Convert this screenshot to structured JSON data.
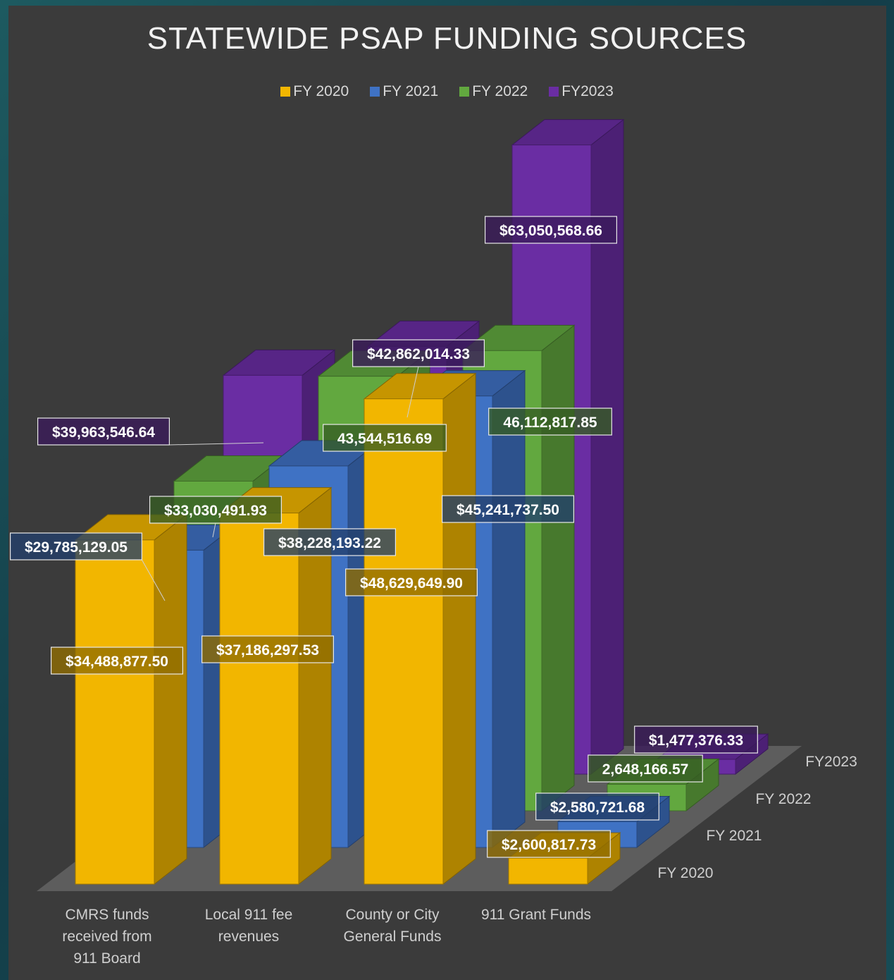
{
  "chart_data": {
    "type": "bar",
    "title": "STATEWIDE PSAP FUNDING SOURCES",
    "categories": [
      "CMRS funds received from 911 Board",
      "Local 911 fee revenues",
      "County or City General Funds",
      "911 Grant Funds"
    ],
    "series": [
      {
        "name": "FY 2020",
        "color": "#f2b600",
        "values": [
          34488877.5,
          37186297.53,
          48629649.9,
          2600817.73
        ],
        "labels": [
          "$34,488,877.50",
          "$37,186,297.53",
          "$48,629,649.90",
          "$2,600,817.73"
        ]
      },
      {
        "name": "FY 2021",
        "color": "#3f72c4",
        "values": [
          29785129.05,
          38228193.22,
          45241737.5,
          2580721.68
        ],
        "labels": [
          "$29,785,129.05",
          "$38,228,193.22",
          "$45,241,737.50",
          "$2,580,721.68"
        ]
      },
      {
        "name": "FY 2022",
        "color": "#62a83f",
        "values": [
          33030491.93,
          43544516.69,
          46112817.85,
          2648166.57
        ],
        "labels": [
          "$33,030,491.93",
          "43,544,516.69",
          "46,112,817.85",
          "2,648,166.57"
        ]
      },
      {
        "name": "FY2023",
        "color": "#6a2da3",
        "values": [
          39963546.64,
          42862014.33,
          63050568.66,
          1477376.33
        ],
        "labels": [
          "$39,963,546.64",
          "$42,862,014.33",
          "$63,050,568.66",
          "$1,477,376.33"
        ]
      }
    ],
    "legend_position": "top",
    "grid": false
  },
  "category_labels": [
    [
      "CMRS funds",
      "received from",
      "911 Board"
    ],
    [
      "Local 911 fee",
      "revenues"
    ],
    [
      "County or City",
      "General Funds"
    ],
    [
      "911 Grant Funds"
    ]
  ]
}
